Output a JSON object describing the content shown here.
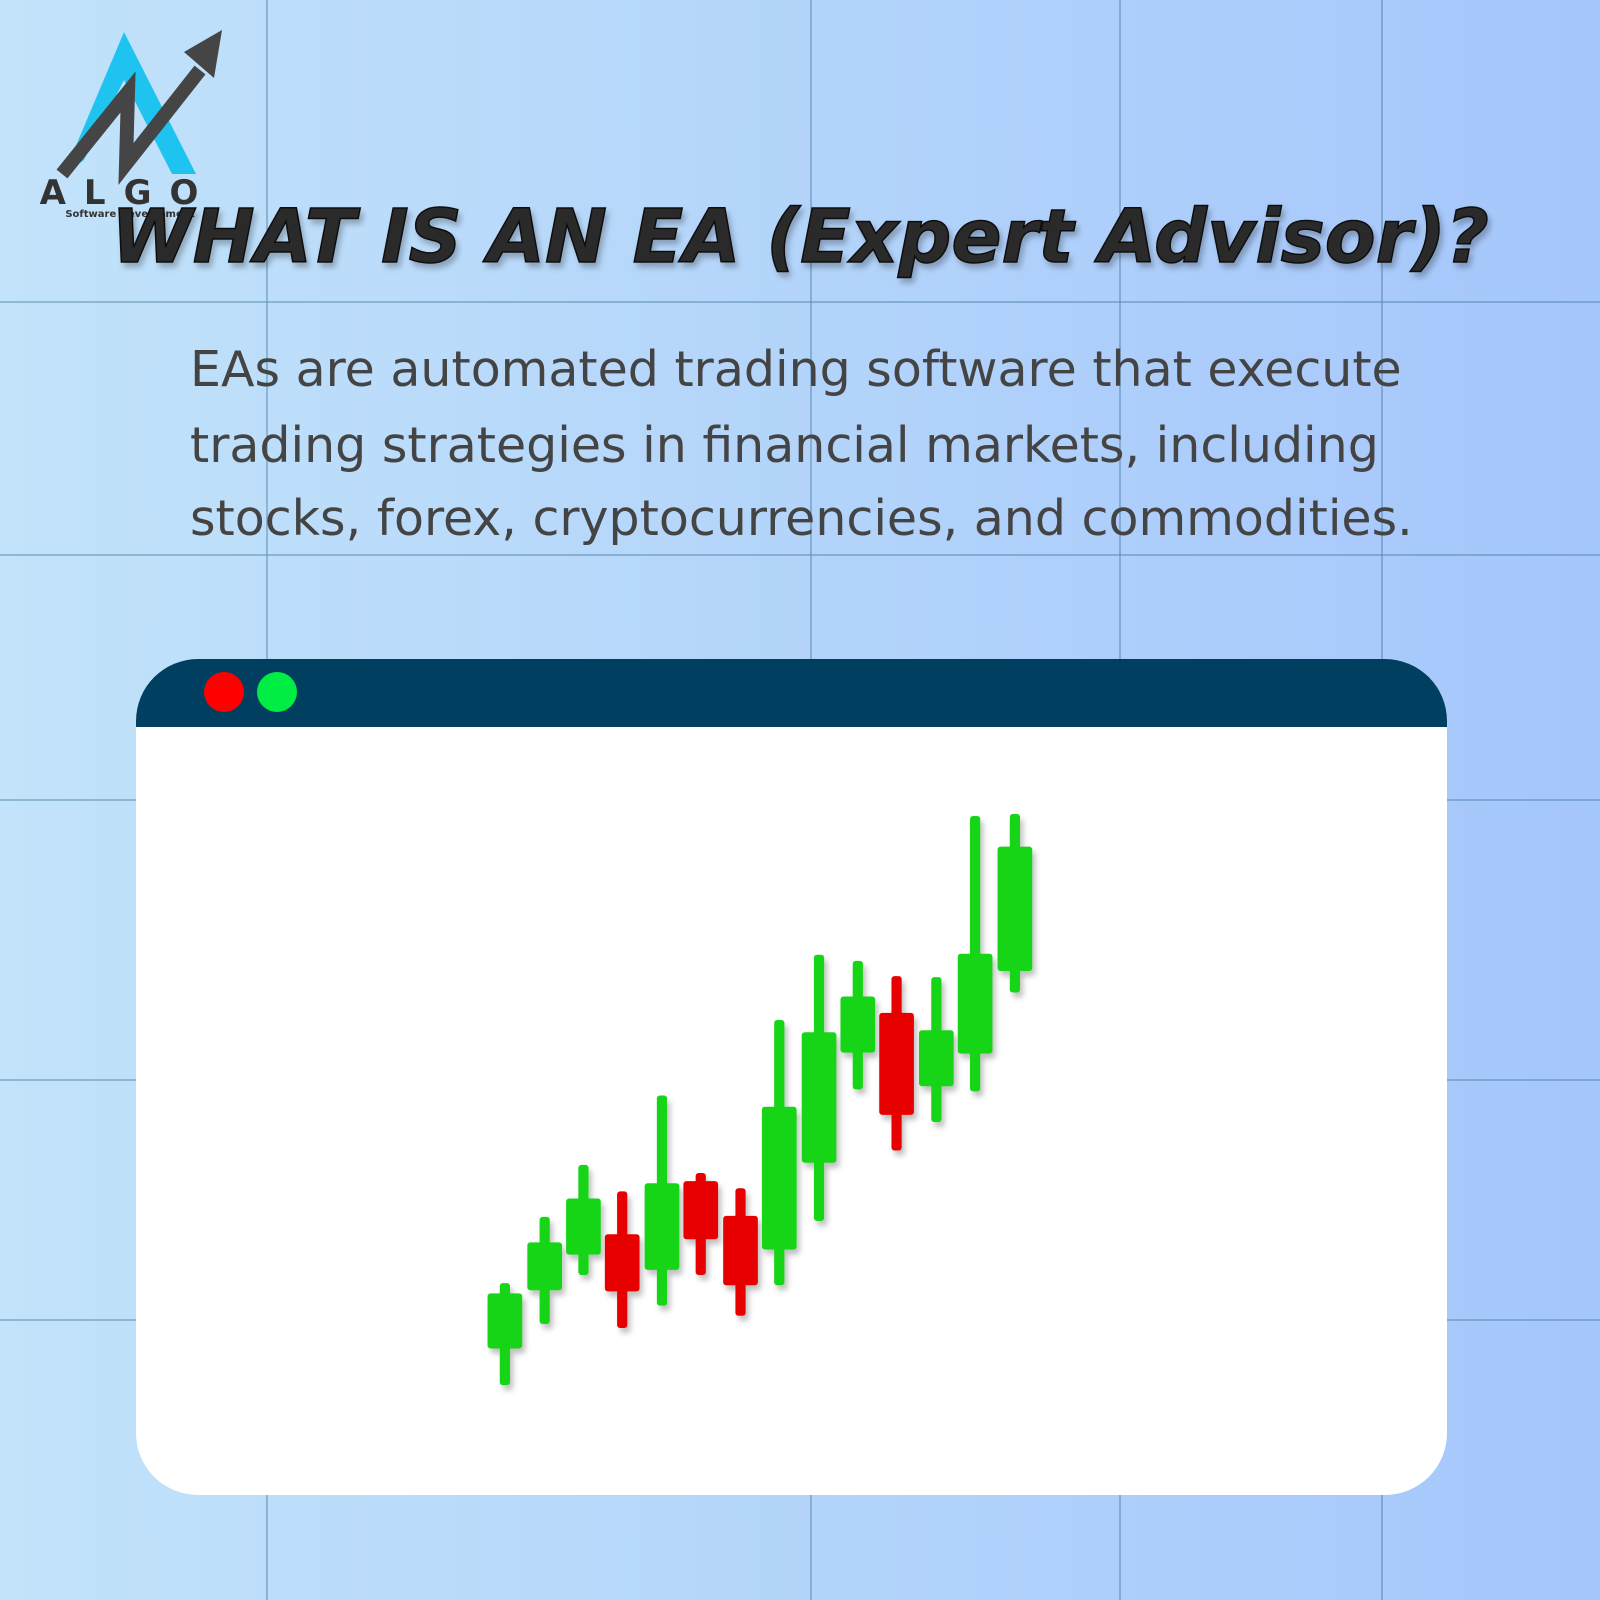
{
  "logo": {
    "name": "ALGO",
    "tagline": "Software Development"
  },
  "title": "WHAT IS AN EA (Expert Advisor)?",
  "body": {
    "lines": [
      "EAs are automated trading software that execute",
      "trading strategies in financial markets, including",
      "stocks, forex, cryptocurrencies, and commodities."
    ]
  }
}
